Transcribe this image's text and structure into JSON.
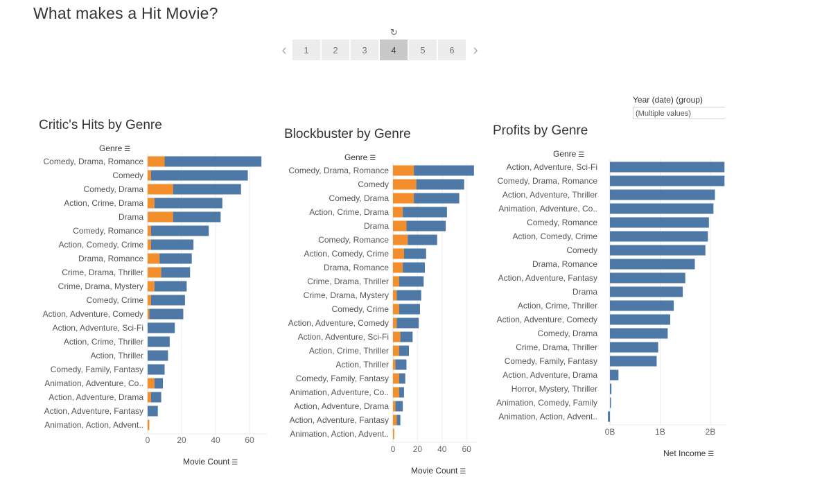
{
  "page": {
    "title": "What makes a Hit Movie?"
  },
  "story_nav": {
    "prev_icon": "chevron-left-icon",
    "next_icon": "chevron-right-icon",
    "revert_icon": "revert-icon",
    "pages": [
      "1",
      "2",
      "3",
      "4",
      "5",
      "6"
    ],
    "active": "4"
  },
  "filter": {
    "label": "Year (date) (group)",
    "value": "(Multiple values)"
  },
  "colors": {
    "blue": "#4e79a7",
    "orange": "#f28e2b",
    "grid": "#eeeeee",
    "axis": "#dddddd"
  },
  "chart_data": [
    {
      "type": "bar",
      "title": "Critic's Hits by Genre",
      "row_header": "Genre",
      "xlabel": "Movie Count",
      "xticks": [
        0,
        20,
        40,
        60
      ],
      "xlim": [
        0,
        70
      ],
      "categories": [
        "Comedy, Drama, Romance",
        "Comedy",
        "Comedy, Drama",
        "Action, Crime, Drama",
        "Drama",
        "Comedy, Romance",
        "Action, Comedy, Crime",
        "Drama, Romance",
        "Crime, Drama, Thriller",
        "Crime, Drama, Mystery",
        "Comedy, Crime",
        "Action, Adventure, Comedy",
        "Action, Adventure, Sci-Fi",
        "Action, Crime, Thriller",
        "Action, Thriller",
        "Comedy, Family, Fantasy",
        "Animation, Adventure, Co..",
        "Action, Adventure, Drama",
        "Action, Adventure, Fantasy",
        "Animation, Action, Advent.."
      ],
      "series": [
        {
          "color": "orange",
          "values": [
            10,
            2,
            15,
            4,
            15,
            2,
            2,
            7,
            8,
            4,
            2,
            1,
            0,
            0,
            0,
            0,
            4,
            2,
            0,
            1
          ]
        },
        {
          "color": "blue",
          "values": [
            57,
            57,
            40,
            40,
            28,
            34,
            25,
            19,
            17,
            19,
            20,
            20,
            16,
            13,
            12,
            10,
            5,
            6,
            6,
            0
          ]
        }
      ]
    },
    {
      "type": "bar",
      "title": "Blockbuster by Genre",
      "row_header": "Genre",
      "xlabel": "Movie Count",
      "xticks": [
        0,
        20,
        40,
        60
      ],
      "xlim": [
        0,
        68
      ],
      "categories": [
        "Comedy, Drama, Romance",
        "Comedy",
        "Comedy, Drama",
        "Action, Crime, Drama",
        "Drama",
        "Comedy, Romance",
        "Action, Comedy, Crime",
        "Drama, Romance",
        "Crime, Drama, Thriller",
        "Crime, Drama, Mystery",
        "Comedy, Crime",
        "Action, Adventure, Comedy",
        "Action, Adventure, Sci-Fi",
        "Action, Crime, Thriller",
        "Action, Thriller",
        "Comedy, Family, Fantasy",
        "Animation, Adventure, Co..",
        "Action, Adventure, Drama",
        "Action, Adventure, Fantasy",
        "Animation, Action, Advent.."
      ],
      "series": [
        {
          "color": "orange",
          "values": [
            17,
            19,
            17,
            8,
            11,
            12,
            9,
            8,
            5,
            3,
            5,
            3,
            6,
            5,
            2,
            5,
            5,
            2,
            3,
            1
          ]
        },
        {
          "color": "blue",
          "values": [
            49,
            39,
            37,
            36,
            32,
            24,
            18,
            18,
            20,
            20,
            17,
            18,
            10,
            8,
            9,
            5,
            4,
            6,
            3,
            0
          ]
        }
      ]
    },
    {
      "type": "bar",
      "title": "Profits by Genre",
      "row_header": "Genre",
      "xlabel": "Net Income",
      "xticks": [
        "0B",
        "1B",
        "2B"
      ],
      "xlim": [
        0,
        2.3
      ],
      "categories": [
        "Action, Adventure, Sci-Fi",
        "Comedy, Drama, Romance",
        "Action, Adventure, Thriller",
        "Animation, Adventure, Co..",
        "Comedy, Romance",
        "Action, Comedy, Crime",
        "Comedy",
        "Drama, Romance",
        "Action, Adventure, Fantasy",
        "Drama",
        "Action, Crime, Thriller",
        "Action, Adventure, Comedy",
        "Comedy, Drama",
        "Crime, Drama, Thriller",
        "Comedy, Family, Fantasy",
        "Action, Adventure, Drama",
        "Horror, Mystery, Thriller",
        "Animation, Comedy, Family",
        "Animation, Action, Advent.."
      ],
      "series": [
        {
          "color": "blue",
          "values": [
            2.28,
            2.28,
            2.09,
            2.06,
            1.97,
            1.95,
            1.9,
            1.69,
            1.5,
            1.45,
            1.27,
            1.2,
            1.15,
            0.96,
            0.93,
            0.17,
            0.03,
            0.01,
            -0.04
          ]
        }
      ]
    }
  ]
}
